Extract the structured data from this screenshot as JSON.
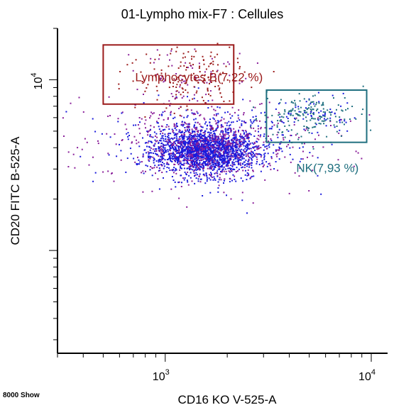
{
  "chart_data": {
    "type": "scatter",
    "title": "01-Lympho mix-F7 : Cellules",
    "xlabel": "CD16 KO V-525-A",
    "ylabel": "CD20 FITC B-525-A",
    "x_scale": "log",
    "y_scale": "log",
    "xlim": [
      300,
      12000
    ],
    "ylim": [
      250,
      20000
    ],
    "x_ticks": [
      {
        "base": "10",
        "exp": "3",
        "value": 1000
      },
      {
        "base": "10",
        "exp": "4",
        "value": 10000
      }
    ],
    "y_ticks": [
      {
        "base": "10",
        "exp": "4",
        "value": 10000
      }
    ],
    "footer_text": "8000 Show",
    "colors": {
      "population_main": "#1a1adc",
      "population_sparse": "#8a1f9a",
      "gate_b": "#9b1a1a",
      "gate_nk": "#1f6f7f"
    },
    "gates": [
      {
        "name": "Lymphocytes B",
        "label": "Lymphocytes B(7,22 %)",
        "percent": 7.22,
        "x_range": [
          500,
          2150
        ],
        "y_range": [
          7200,
          16000
        ],
        "color": "#9b1a1a"
      },
      {
        "name": "NK",
        "label": "NK(7,93 %)",
        "percent": 7.93,
        "x_range": [
          3100,
          9500
        ],
        "y_range": [
          4300,
          8700
        ],
        "color": "#1f6f7f"
      }
    ],
    "populations": [
      {
        "name": "main",
        "count": 2200,
        "center": [
          1550,
          3900
        ],
        "spread_log": [
          0.13,
          0.07
        ],
        "color": "#1a1adc",
        "mix_color": "#8a1f9a",
        "mix_ratio": 0.22
      },
      {
        "name": "halo",
        "count": 650,
        "center": [
          1600,
          4400
        ],
        "spread_log": [
          0.28,
          0.13
        ],
        "color": "#8a1f9a",
        "mix_color": "#1a1adc",
        "mix_ratio": 0.35
      },
      {
        "name": "lympho_b",
        "count": 230,
        "center": [
          1250,
          10500
        ],
        "spread_log": [
          0.14,
          0.085
        ],
        "color": "#9b1a1a",
        "mix_color": "#8a1f9a",
        "mix_ratio": 0.3
      },
      {
        "name": "nk",
        "count": 230,
        "center": [
          4900,
          6300
        ],
        "spread_log": [
          0.11,
          0.065
        ],
        "color": "#1f6f7f",
        "mix_color": "#1a1adc",
        "mix_ratio": 0.25
      }
    ]
  }
}
